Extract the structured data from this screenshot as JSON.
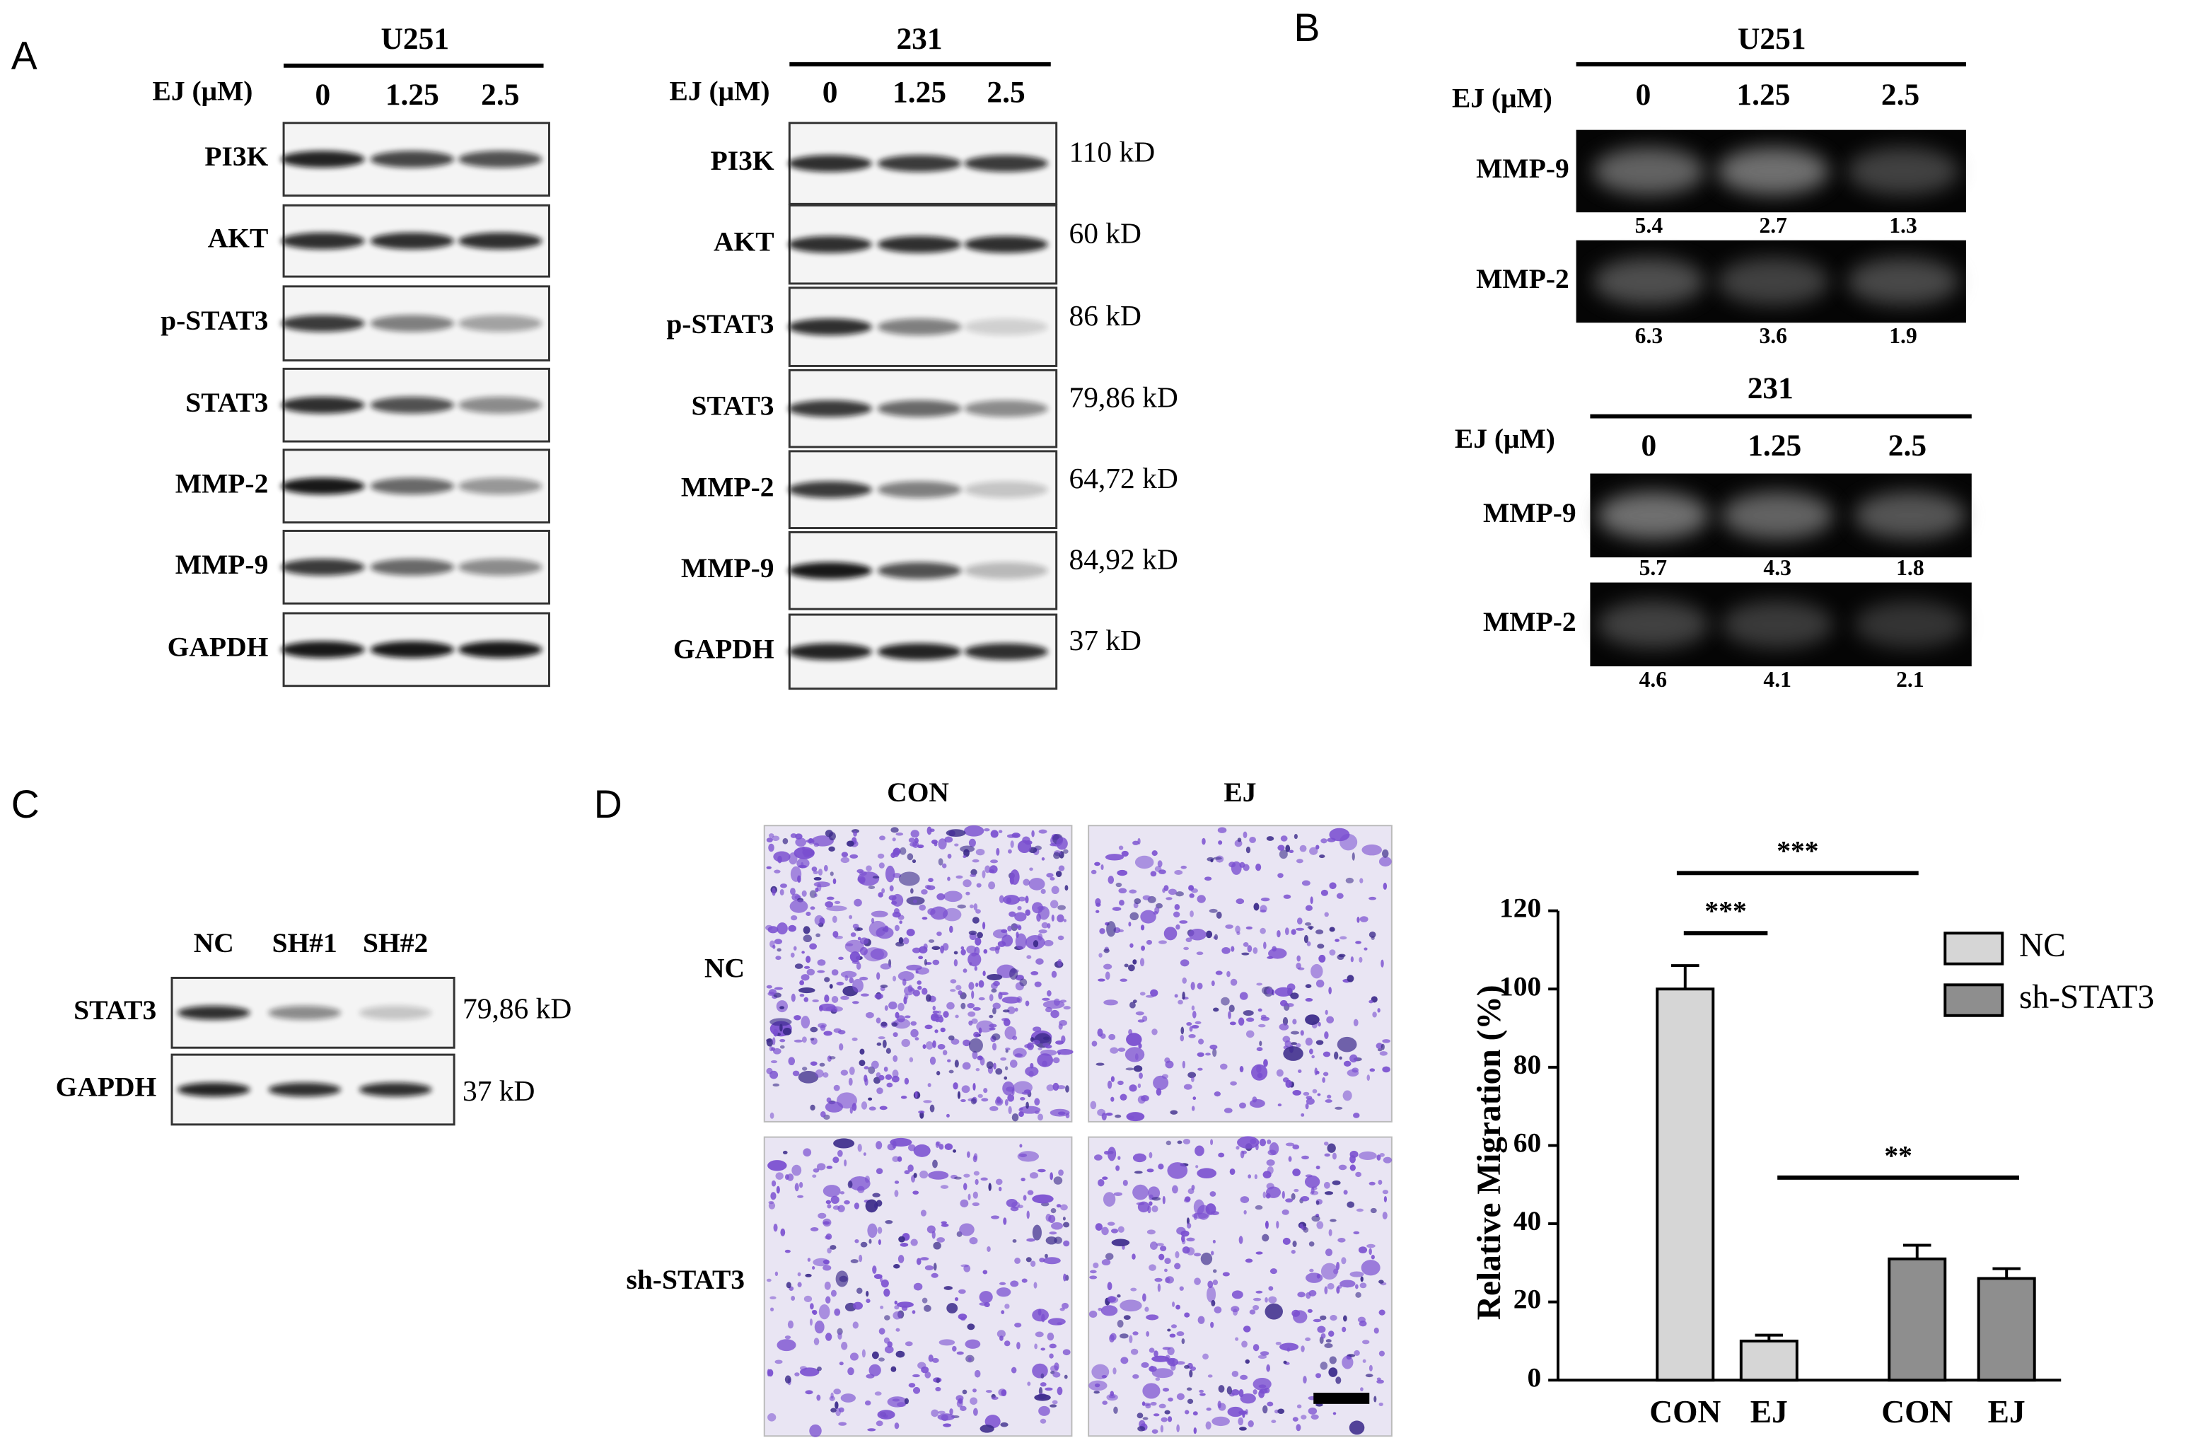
{
  "panel_a": {
    "label": "A",
    "blots": [
      {
        "cell_line": "U251",
        "dose_label": "EJ (μM)",
        "doses": [
          "0",
          "1.25",
          "2.5"
        ],
        "proteins": [
          "PI3K",
          "AKT",
          "p-STAT3",
          "STAT3",
          "MMP-2",
          "MMP-9",
          "GAPDH"
        ]
      },
      {
        "cell_line": "231",
        "dose_label": "EJ (μM)",
        "doses": [
          "0",
          "1.25",
          "2.5"
        ],
        "proteins": [
          "PI3K",
          "AKT",
          "p-STAT3",
          "STAT3",
          "MMP-2",
          "MMP-9",
          "GAPDH"
        ],
        "sizes": [
          "110 kD",
          "60 kD",
          "86 kD",
          "79,86 kD",
          "64,72 kD",
          "84,92 kD",
          "37 kD"
        ]
      }
    ]
  },
  "panel_b": {
    "label": "B",
    "zymograms": [
      {
        "cell_line": "U251",
        "dose_label": "EJ (μM)",
        "doses": [
          "0",
          "1.25",
          "2.5"
        ],
        "bands": [
          {
            "name": "MMP-9",
            "quantities": [
              5.4,
              2.7,
              1.3
            ]
          },
          {
            "name": "MMP-2",
            "quantities": [
              6.3,
              3.6,
              1.9
            ]
          }
        ]
      },
      {
        "cell_line": "231",
        "dose_label": "EJ (μM)",
        "doses": [
          "0",
          "1.25",
          "2.5"
        ],
        "bands": [
          {
            "name": "MMP-9",
            "quantities": [
              5.7,
              4.3,
              1.8
            ]
          },
          {
            "name": "MMP-2",
            "quantities": [
              4.6,
              4.1,
              2.1
            ]
          }
        ]
      }
    ]
  },
  "panel_c": {
    "label": "C",
    "lanes": [
      "NC",
      "SH#1",
      "SH#2"
    ],
    "proteins": [
      "STAT3",
      "GAPDH"
    ],
    "sizes": [
      "79,86 kD",
      "37 kD"
    ]
  },
  "panel_d": {
    "label": "D",
    "columns": [
      "CON",
      "EJ"
    ],
    "rows": [
      "NC",
      "sh-STAT3"
    ]
  },
  "chart_data": {
    "type": "bar",
    "ylabel": "Relative Migration (%)",
    "categories": [
      "CON",
      "EJ",
      "CON",
      "EJ"
    ],
    "series": [
      {
        "name": "NC",
        "color": "#d6d6d6",
        "values": [
          100,
          10,
          null,
          null
        ],
        "errors": [
          6,
          1.5,
          null,
          null
        ]
      },
      {
        "name": "sh-STAT3",
        "color": "#8e8e8e",
        "values": [
          null,
          null,
          31,
          26
        ],
        "errors": [
          null,
          null,
          3.5,
          2.5
        ]
      }
    ],
    "ylim": [
      0,
      120
    ],
    "yticks": [
      0,
      20,
      40,
      60,
      80,
      100,
      120
    ],
    "annotations": [
      "***",
      "***",
      "**"
    ],
    "legend": "upper right"
  }
}
